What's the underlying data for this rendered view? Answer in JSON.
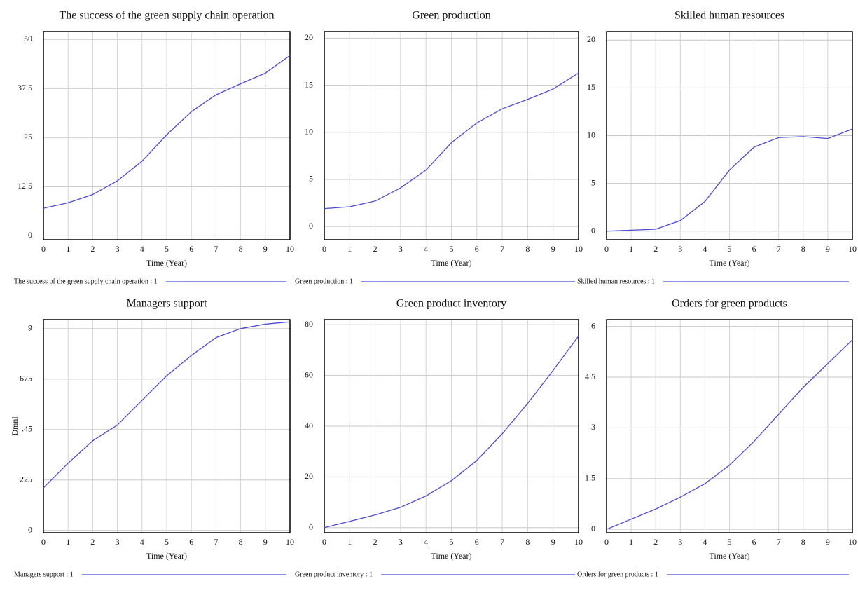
{
  "chart_data": [
    {
      "type": "line",
      "title": "The success of the green supply chain operation",
      "xlabel": "Time (Year)",
      "x": [
        0,
        1,
        2,
        3,
        4,
        5,
        6,
        7,
        8,
        9,
        10
      ],
      "xlim": [
        0,
        10
      ],
      "xticks": [
        0,
        1,
        2,
        3,
        4,
        5,
        6,
        7,
        8,
        9,
        10
      ],
      "ylim": [
        -1,
        52
      ],
      "yticks": [
        0,
        12.5,
        25,
        37.5,
        50
      ],
      "grid": true,
      "series": [
        {
          "name": "The success of the green supply chain operation : 1",
          "color": "#4b4bd6",
          "values": [
            7,
            8.4,
            10.5,
            14,
            19,
            25.7,
            31.6,
            35.9,
            38.7,
            41.4,
            45.9
          ]
        }
      ]
    },
    {
      "type": "line",
      "title": "Green production",
      "xlabel": "Time (Year)",
      "x": [
        0,
        1,
        2,
        3,
        4,
        5,
        6,
        7,
        8,
        9,
        10
      ],
      "xlim": [
        0,
        10
      ],
      "xticks": [
        0,
        1,
        2,
        3,
        4,
        5,
        6,
        7,
        8,
        9,
        10
      ],
      "ylim": [
        -1.4,
        20.7
      ],
      "yticks": [
        0,
        5,
        10,
        15,
        20
      ],
      "grid": true,
      "series": [
        {
          "name": "Green production : 1",
          "color": "#4b4bd6",
          "values": [
            1.9,
            2.1,
            2.7,
            4.1,
            6,
            8.9,
            11,
            12.5,
            13.5,
            14.6,
            16.3
          ]
        }
      ]
    },
    {
      "type": "line",
      "title": "Skilled human resources",
      "xlabel": "Time (Year)",
      "x": [
        0,
        1,
        2,
        3,
        4,
        5,
        6,
        7,
        8,
        9,
        10
      ],
      "xlim": [
        0,
        10
      ],
      "xticks": [
        0,
        1,
        2,
        3,
        4,
        5,
        6,
        7,
        8,
        9,
        10
      ],
      "ylim": [
        -0.9,
        20.9
      ],
      "yticks": [
        0,
        5,
        10,
        15,
        20
      ],
      "grid": true,
      "series": [
        {
          "name": "Skilled human resources : 1",
          "color": "#4b4bd6",
          "values": [
            0,
            0.1,
            0.2,
            1.1,
            3.1,
            6.4,
            8.8,
            9.8,
            9.9,
            9.7,
            10.7
          ]
        }
      ]
    },
    {
      "type": "line",
      "title": "Managers support",
      "xlabel": "Time (Year)",
      "ylabel": "Dmnl",
      "x": [
        0,
        1,
        2,
        3,
        4,
        5,
        6,
        7,
        8,
        9,
        10
      ],
      "xlim": [
        0,
        10
      ],
      "xticks": [
        0,
        1,
        2,
        3,
        4,
        5,
        6,
        7,
        8,
        9,
        10
      ],
      "ylim": [
        -0.01,
        0.94
      ],
      "yticks": [
        0,
        {
          "value": 0.225,
          "label": "225"
        },
        {
          "value": 0.45,
          "label": ".45"
        },
        {
          "value": 0.675,
          "label": "675"
        },
        {
          "value": 0.9,
          "label": "9"
        }
      ],
      "grid": true,
      "series": [
        {
          "name": "Managers support : 1",
          "color": "#4b4bd6",
          "values": [
            0.19,
            0.3,
            0.4,
            0.47,
            0.58,
            0.69,
            0.78,
            0.86,
            0.9,
            0.92,
            0.93
          ]
        }
      ]
    },
    {
      "type": "line",
      "title": "Green product inventory",
      "xlabel": "Time (Year)",
      "x": [
        0,
        1,
        2,
        3,
        4,
        5,
        6,
        7,
        8,
        9,
        10
      ],
      "xlim": [
        0,
        10
      ],
      "xticks": [
        0,
        1,
        2,
        3,
        4,
        5,
        6,
        7,
        8,
        9,
        10
      ],
      "ylim": [
        -2,
        82
      ],
      "yticks": [
        0,
        20,
        40,
        60,
        80
      ],
      "grid": true,
      "series": [
        {
          "name": "Green product inventory : 1",
          "color": "#4b4bd6",
          "values": [
            0,
            2.5,
            5,
            8,
            12.5,
            18.5,
            26.5,
            37,
            49,
            62,
            75.5
          ]
        }
      ]
    },
    {
      "type": "line",
      "title": "Orders for green products",
      "xlabel": "Time (Year)",
      "x": [
        0,
        1,
        2,
        3,
        4,
        5,
        6,
        7,
        8,
        9,
        10
      ],
      "xlim": [
        0,
        10
      ],
      "xticks": [
        0,
        1,
        2,
        3,
        4,
        5,
        6,
        7,
        8,
        9,
        10
      ],
      "ylim": [
        -0.1,
        6.2
      ],
      "yticks": [
        0,
        1.5,
        3,
        4.5,
        6
      ],
      "grid": true,
      "series": [
        {
          "name": "Orders for green products : 1",
          "color": "#4b4bd6",
          "values": [
            0,
            0.3,
            0.6,
            0.95,
            1.35,
            1.9,
            2.6,
            3.4,
            4.2,
            4.9,
            5.6
          ]
        }
      ]
    }
  ]
}
